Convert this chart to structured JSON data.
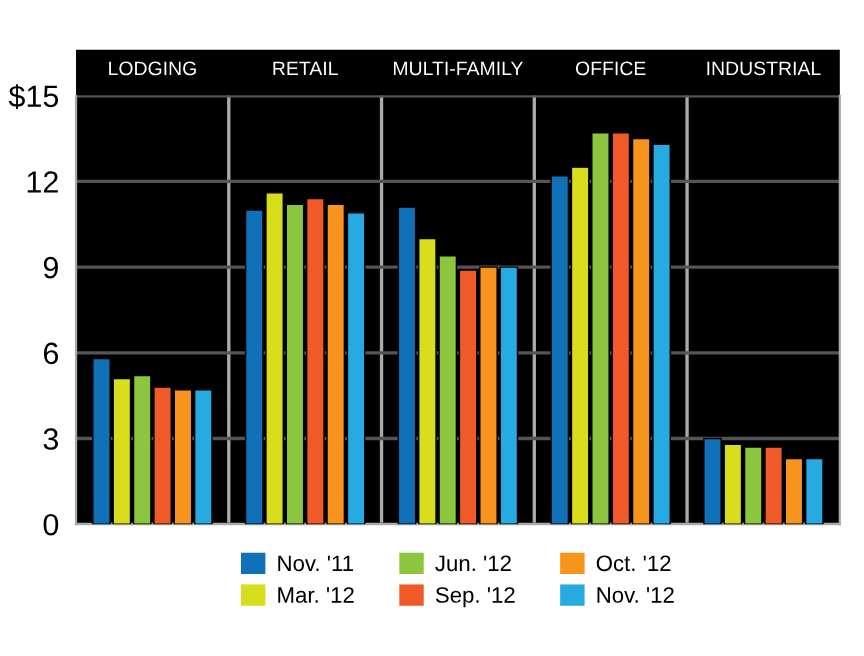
{
  "chart_data": {
    "type": "bar",
    "categories": [
      "LODGING",
      "RETAIL",
      "MULTI-FAMILY",
      "OFFICE",
      "INDUSTRIAL"
    ],
    "series": [
      {
        "name": "Nov. '11",
        "color": "#1070b8",
        "values": [
          5.8,
          11.0,
          11.1,
          12.2,
          3.0
        ]
      },
      {
        "name": "Mar. '12",
        "color": "#d8de1c",
        "values": [
          5.1,
          11.6,
          10.0,
          12.5,
          2.8
        ]
      },
      {
        "name": "Jun. '12",
        "color": "#8cc63e",
        "values": [
          5.2,
          11.2,
          9.4,
          13.7,
          2.7
        ]
      },
      {
        "name": "Sep. '12",
        "color": "#f05a28",
        "values": [
          4.8,
          11.4,
          8.9,
          13.7,
          2.7
        ]
      },
      {
        "name": "Oct. '12",
        "color": "#f7941d",
        "values": [
          4.7,
          11.2,
          9.0,
          13.5,
          2.3
        ]
      },
      {
        "name": "Nov. '12",
        "color": "#27aae1",
        "values": [
          4.7,
          10.9,
          9.0,
          13.3,
          2.3
        ]
      }
    ],
    "ylim": [
      0,
      15
    ],
    "yticks": [
      0,
      3,
      6,
      9,
      12,
      {
        "value": 15,
        "label": "$15"
      }
    ],
    "grid": "y",
    "legend": "bottom"
  }
}
